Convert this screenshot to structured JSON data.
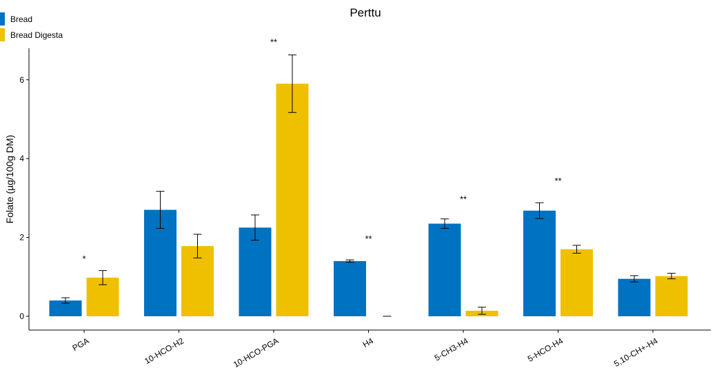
{
  "chart_data": {
    "type": "bar",
    "title": "Perttu",
    "ylabel": "Folate (µg/100g DM)",
    "xlabel": "",
    "ylim": [
      -0.35,
      6.8
    ],
    "yticks": [
      0,
      2,
      4,
      6
    ],
    "ytick_labels": [
      "0",
      "2",
      "4",
      "6"
    ],
    "grid": false,
    "legend_position": "top-left",
    "categories": [
      "PGA",
      "10-HCO-H2",
      "10-HCO-PGA",
      "H4",
      "5-CH3-H4",
      "5-HCO-H4",
      "5,10-CH+-H4"
    ],
    "series": [
      {
        "name": "Bread",
        "color": "#0072C2",
        "values": [
          0.4,
          2.7,
          2.25,
          1.4,
          2.35,
          2.68,
          0.95
        ],
        "error": [
          0.07,
          0.47,
          0.32,
          0.03,
          0.12,
          0.2,
          0.08
        ]
      },
      {
        "name": "Bread Digesta",
        "color": "#EFC000",
        "values": [
          0.98,
          1.78,
          5.9,
          0.0,
          0.14,
          1.7,
          1.02
        ],
        "error": [
          0.18,
          0.3,
          0.73,
          0.0,
          0.09,
          0.1,
          0.07
        ]
      }
    ],
    "annotations": [
      {
        "category": "PGA",
        "text": "*",
        "y": 1.52
      },
      {
        "category": "10-HCO-PGA",
        "text": "**",
        "y": 7.02
      },
      {
        "category": "H4",
        "text": "**",
        "y": 2.03
      },
      {
        "category": "5-CH3-H4",
        "text": "**",
        "y": 3.03
      },
      {
        "category": "5-HCO-H4",
        "text": "**",
        "y": 3.5
      }
    ]
  }
}
